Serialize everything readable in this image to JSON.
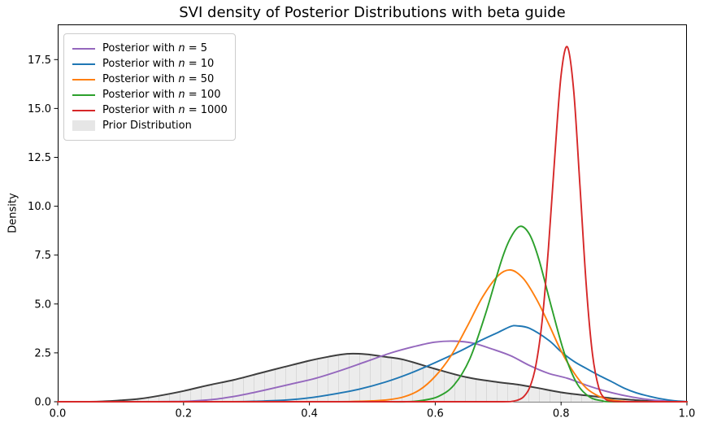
{
  "title": "SVI density of Posterior Distributions with beta guide",
  "chart_data": {
    "type": "line",
    "title": "SVI density of Posterior Distributions with beta guide",
    "xlabel": "",
    "ylabel": "Density",
    "xlim": [
      0,
      1
    ],
    "ylim": [
      0,
      19.3
    ],
    "grid": false,
    "x_ticks": [
      0,
      0.2,
      0.4,
      0.6,
      0.8,
      1.0
    ],
    "x_tick_labels": [
      "0.0",
      "0.2",
      "0.4",
      "0.6",
      "0.8",
      "1.0"
    ],
    "y_ticks": [
      0,
      2.5,
      5,
      7.5,
      10,
      12.5,
      15,
      17.5
    ],
    "y_tick_labels": [
      "0.0",
      "2.5",
      "5.0",
      "7.5",
      "10.0",
      "12.5",
      "15.0",
      "17.5"
    ],
    "series": [
      {
        "id": "prior",
        "name": "Prior Distribution",
        "kind": "area",
        "color": "#3e3e3e",
        "fill": "#ececec",
        "hatch_color": "#d9d9d9",
        "peak": {
          "x": 0.46,
          "y": 2.45
        },
        "points": [
          [
            0,
            0
          ],
          [
            0.05,
            0
          ],
          [
            0.08,
            0.03
          ],
          [
            0.1,
            0.07
          ],
          [
            0.13,
            0.15
          ],
          [
            0.16,
            0.3
          ],
          [
            0.2,
            0.55
          ],
          [
            0.24,
            0.85
          ],
          [
            0.28,
            1.12
          ],
          [
            0.32,
            1.45
          ],
          [
            0.36,
            1.78
          ],
          [
            0.4,
            2.1
          ],
          [
            0.43,
            2.3
          ],
          [
            0.46,
            2.45
          ],
          [
            0.49,
            2.43
          ],
          [
            0.52,
            2.3
          ],
          [
            0.55,
            2.15
          ],
          [
            0.6,
            1.68
          ],
          [
            0.65,
            1.25
          ],
          [
            0.7,
            1.0
          ],
          [
            0.73,
            0.88
          ],
          [
            0.76,
            0.72
          ],
          [
            0.8,
            0.48
          ],
          [
            0.84,
            0.32
          ],
          [
            0.88,
            0.18
          ],
          [
            0.92,
            0.08
          ],
          [
            0.95,
            0.02
          ],
          [
            0.98,
            0
          ],
          [
            1,
            0
          ]
        ]
      },
      {
        "id": "n5",
        "name": "Posterior with n = 5",
        "kind": "line",
        "color": "#9467bd",
        "peak": {
          "x": 0.63,
          "y": 3.1
        },
        "points": [
          [
            0,
            0
          ],
          [
            0.07,
            0
          ],
          [
            0.13,
            0
          ],
          [
            0.17,
            0.01
          ],
          [
            0.21,
            0.03
          ],
          [
            0.25,
            0.13
          ],
          [
            0.29,
            0.33
          ],
          [
            0.33,
            0.6
          ],
          [
            0.37,
            0.9
          ],
          [
            0.41,
            1.2
          ],
          [
            0.45,
            1.6
          ],
          [
            0.49,
            2.05
          ],
          [
            0.53,
            2.5
          ],
          [
            0.57,
            2.85
          ],
          [
            0.6,
            3.05
          ],
          [
            0.63,
            3.1
          ],
          [
            0.66,
            3.0
          ],
          [
            0.69,
            2.7
          ],
          [
            0.72,
            2.35
          ],
          [
            0.75,
            1.85
          ],
          [
            0.78,
            1.45
          ],
          [
            0.81,
            1.2
          ],
          [
            0.84,
            0.85
          ],
          [
            0.87,
            0.55
          ],
          [
            0.9,
            0.32
          ],
          [
            0.93,
            0.15
          ],
          [
            0.96,
            0.05
          ],
          [
            0.99,
            0.01
          ],
          [
            1,
            0
          ]
        ]
      },
      {
        "id": "n10",
        "name": "Posterior with n = 10",
        "kind": "line",
        "color": "#1f77b4",
        "peak": {
          "x": 0.73,
          "y": 3.88
        },
        "points": [
          [
            0,
            0
          ],
          [
            0.1,
            0
          ],
          [
            0.2,
            0
          ],
          [
            0.28,
            0
          ],
          [
            0.32,
            0.03
          ],
          [
            0.36,
            0.08
          ],
          [
            0.4,
            0.2
          ],
          [
            0.44,
            0.4
          ],
          [
            0.48,
            0.65
          ],
          [
            0.52,
            1.0
          ],
          [
            0.56,
            1.45
          ],
          [
            0.6,
            2.0
          ],
          [
            0.64,
            2.6
          ],
          [
            0.67,
            3.1
          ],
          [
            0.7,
            3.55
          ],
          [
            0.72,
            3.85
          ],
          [
            0.73,
            3.88
          ],
          [
            0.75,
            3.75
          ],
          [
            0.78,
            3.15
          ],
          [
            0.8,
            2.56
          ],
          [
            0.82,
            2.07
          ],
          [
            0.84,
            1.7
          ],
          [
            0.86,
            1.35
          ],
          [
            0.88,
            1.03
          ],
          [
            0.9,
            0.7
          ],
          [
            0.92,
            0.45
          ],
          [
            0.94,
            0.28
          ],
          [
            0.96,
            0.14
          ],
          [
            0.98,
            0.05
          ],
          [
            1,
            0.01
          ]
        ]
      },
      {
        "id": "n50",
        "name": "Posterior with n = 50",
        "kind": "line",
        "color": "#ff7f0e",
        "peak": {
          "x": 0.72,
          "y": 6.74
        },
        "points": [
          [
            0,
            0
          ],
          [
            0.1,
            0
          ],
          [
            0.2,
            0
          ],
          [
            0.3,
            0
          ],
          [
            0.4,
            0
          ],
          [
            0.45,
            0
          ],
          [
            0.48,
            0.02
          ],
          [
            0.5,
            0.04
          ],
          [
            0.525,
            0.1
          ],
          [
            0.55,
            0.25
          ],
          [
            0.575,
            0.6
          ],
          [
            0.6,
            1.3
          ],
          [
            0.625,
            2.35
          ],
          [
            0.65,
            3.8
          ],
          [
            0.675,
            5.35
          ],
          [
            0.7,
            6.45
          ],
          [
            0.72,
            6.74
          ],
          [
            0.74,
            6.3
          ],
          [
            0.76,
            5.3
          ],
          [
            0.78,
            4.0
          ],
          [
            0.8,
            2.6
          ],
          [
            0.82,
            1.5
          ],
          [
            0.84,
            0.7
          ],
          [
            0.86,
            0.28
          ],
          [
            0.88,
            0.09
          ],
          [
            0.9,
            0.02
          ],
          [
            0.92,
            0
          ],
          [
            1,
            0
          ]
        ]
      },
      {
        "id": "n100",
        "name": "Posterior with n = 100",
        "kind": "line",
        "color": "#2ca02c",
        "peak": {
          "x": 0.735,
          "y": 8.97
        },
        "points": [
          [
            0,
            0
          ],
          [
            0.1,
            0
          ],
          [
            0.2,
            0
          ],
          [
            0.3,
            0
          ],
          [
            0.4,
            0
          ],
          [
            0.5,
            0
          ],
          [
            0.555,
            0
          ],
          [
            0.58,
            0.07
          ],
          [
            0.605,
            0.27
          ],
          [
            0.63,
            0.86
          ],
          [
            0.655,
            2.2
          ],
          [
            0.68,
            4.5
          ],
          [
            0.705,
            7.2
          ],
          [
            0.72,
            8.4
          ],
          [
            0.735,
            8.97
          ],
          [
            0.75,
            8.55
          ],
          [
            0.765,
            7.25
          ],
          [
            0.785,
            4.8
          ],
          [
            0.805,
            2.5
          ],
          [
            0.825,
            0.95
          ],
          [
            0.845,
            0.25
          ],
          [
            0.865,
            0.05
          ],
          [
            0.885,
            0
          ],
          [
            1,
            0
          ]
        ]
      },
      {
        "id": "n1000",
        "name": "Posterior with n = 1000",
        "kind": "line",
        "color": "#d62728",
        "peak": {
          "x": 0.81,
          "y": 18.15
        },
        "points": [
          [
            0,
            0
          ],
          [
            0.1,
            0
          ],
          [
            0.2,
            0
          ],
          [
            0.3,
            0
          ],
          [
            0.4,
            0
          ],
          [
            0.5,
            0
          ],
          [
            0.6,
            0
          ],
          [
            0.65,
            0
          ],
          [
            0.7,
            0
          ],
          [
            0.72,
            0.01
          ],
          [
            0.73,
            0.07
          ],
          [
            0.74,
            0.24
          ],
          [
            0.75,
            0.72
          ],
          [
            0.76,
            1.87
          ],
          [
            0.77,
            4.17
          ],
          [
            0.78,
            7.89
          ],
          [
            0.79,
            12.57
          ],
          [
            0.8,
            16.7
          ],
          [
            0.81,
            18.15
          ],
          [
            0.82,
            15.92
          ],
          [
            0.83,
            11.05
          ],
          [
            0.84,
            5.94
          ],
          [
            0.85,
            2.41
          ],
          [
            0.86,
            0.71
          ],
          [
            0.87,
            0.15
          ],
          [
            0.88,
            0.03
          ],
          [
            0.9,
            0
          ],
          [
            0.95,
            0
          ],
          [
            1,
            0
          ]
        ]
      }
    ],
    "legend": {
      "position": "upper left",
      "items": [
        {
          "series": "n5",
          "swatch": "line",
          "prefix": "Posterior with ",
          "symbol": "n",
          "suffix": " = 5"
        },
        {
          "series": "n10",
          "swatch": "line",
          "prefix": "Posterior with ",
          "symbol": "n",
          "suffix": " = 10"
        },
        {
          "series": "n50",
          "swatch": "line",
          "prefix": "Posterior with ",
          "symbol": "n",
          "suffix": " = 50"
        },
        {
          "series": "n100",
          "swatch": "line",
          "prefix": "Posterior with ",
          "symbol": "n",
          "suffix": " = 100"
        },
        {
          "series": "n1000",
          "swatch": "line",
          "prefix": "Posterior with ",
          "symbol": "n",
          "suffix": " = 1000"
        },
        {
          "series": "prior",
          "swatch": "patch",
          "label": "Prior Distribution"
        }
      ]
    },
    "axis_color": "#000000",
    "line_width": 1.9
  }
}
